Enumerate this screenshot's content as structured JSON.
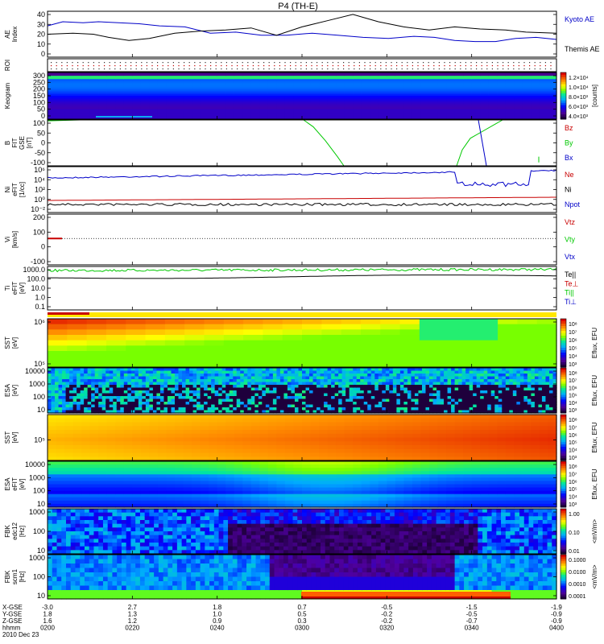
{
  "title": "P4 (TH-E)",
  "colors": {
    "blue": "#0000c8",
    "black": "#000000",
    "red": "#c80000",
    "green": "#00c800",
    "orange": "#ff9a00",
    "yellow": "#ffff00"
  },
  "chart_data": [
    {
      "type": "line",
      "ylabel": "AE Index",
      "ylim": [
        -2,
        42
      ],
      "yticks": [
        "40",
        "30",
        "20",
        "10",
        "0"
      ],
      "legend": [
        {
          "name": "Kyoto AE",
          "color": "#0000c8"
        },
        {
          "name": "Themis AE",
          "color": "#000000"
        }
      ],
      "series": [
        {
          "name": "Kyoto AE",
          "color": "#0000c8",
          "x": [
            0,
            0.03,
            0.07,
            0.1,
            0.14,
            0.18,
            0.22,
            0.27,
            0.32,
            0.37,
            0.42,
            0.47,
            0.52,
            0.57,
            0.62,
            0.67,
            0.72,
            0.76,
            0.8,
            0.84,
            0.88,
            0.92,
            0.96,
            1.0
          ],
          "values": [
            28,
            32,
            31,
            32,
            31,
            30,
            28,
            27,
            21,
            22,
            19,
            19,
            21,
            19,
            17,
            16,
            18,
            17,
            14,
            13,
            13,
            16,
            17,
            15
          ]
        },
        {
          "name": "Themis AE",
          "color": "#000000",
          "x": [
            0,
            0.05,
            0.09,
            0.12,
            0.16,
            0.2,
            0.25,
            0.3,
            0.35,
            0.4,
            0.45,
            0.5,
            0.55,
            0.6,
            0.65,
            0.7,
            0.75,
            0.8,
            0.85,
            0.9,
            0.94,
            1.0
          ],
          "values": [
            20,
            21,
            20,
            17,
            14,
            16,
            21,
            23,
            24,
            26,
            19,
            27,
            33,
            39,
            32,
            27,
            24,
            27,
            25,
            24,
            22,
            21
          ]
        }
      ]
    },
    {
      "type": "table",
      "ylabel": "ROI"
    },
    {
      "type": "heatmap",
      "ylabel": "Keogram",
      "yticks": [
        "300",
        "250",
        "200",
        "150",
        "100",
        "50",
        "0"
      ],
      "colorbar": {
        "labels": [
          "1.2×10⁴",
          "1.0×10⁴",
          "8.0×10³",
          "6.0×10³",
          "4.0×10³"
        ],
        "title": "[counts]"
      }
    },
    {
      "type": "line",
      "ylabel": "B FIT GSE [nT]",
      "ylim": [
        -100,
        100
      ],
      "yticks": [
        "100",
        "50",
        "0",
        "-50",
        "-100"
      ],
      "legend": [
        {
          "name": "Bz",
          "color": "#c80000"
        },
        {
          "name": "By",
          "color": "#00c800"
        },
        {
          "name": "Bx",
          "color": "#0000c8"
        }
      ]
    },
    {
      "type": "line",
      "ylabel": "Ni eFIT [1/cc]",
      "yticks": [
        "10⁶",
        "10⁴",
        "10²",
        "10⁰",
        "10⁻²"
      ],
      "legend": [
        {
          "name": "Ne",
          "color": "#c80000"
        },
        {
          "name": "Ni",
          "color": "#000000"
        },
        {
          "name": "Npot",
          "color": "#0000c8"
        }
      ]
    },
    {
      "type": "line",
      "ylabel": "Vi [km/s]",
      "yticks": [
        "200",
        "100",
        "0",
        "-100"
      ],
      "legend": [
        {
          "name": "Vtz",
          "color": "#c80000"
        },
        {
          "name": "Vty",
          "color": "#00c800"
        },
        {
          "name": "Vtx",
          "color": "#0000c8"
        }
      ]
    },
    {
      "type": "line",
      "ylabel": "Ti eFIT [eV]",
      "yticks": [
        "1000.0",
        "100.0",
        "10.0",
        "1.0",
        "0.1"
      ],
      "legend": [
        {
          "name": "Te||",
          "color": "#000000"
        },
        {
          "name": "Te⊥",
          "color": "#c80000"
        },
        {
          "name": "Ti||",
          "color": "#00c800"
        },
        {
          "name": "Ti⊥",
          "color": "#0000c8"
        }
      ]
    },
    {
      "type": "heatmap",
      "ylabel": "SST [eV]",
      "yticks": [
        "10⁶",
        "10⁵"
      ],
      "colorbar": {
        "title": "Eflux, EFU"
      }
    },
    {
      "type": "heatmap",
      "ylabel": "ESA [eV]",
      "yticks": [
        "10000",
        "1000",
        "100",
        "10"
      ],
      "colorbar": {
        "title": "Eflux, EFU"
      }
    },
    {
      "type": "heatmap",
      "ylabel": "SST [eV]",
      "yticks": [
        "10⁵"
      ],
      "colorbar": {
        "title": "Eflux, EFU"
      }
    },
    {
      "type": "heatmap",
      "ylabel": "ESA eFIT [eV]",
      "yticks": [
        "10000",
        "1000",
        "100",
        "10"
      ],
      "colorbar": {
        "title": "Eflux, EFU"
      }
    },
    {
      "type": "heatmap",
      "ylabel": "FBK edc12 [Hz]",
      "yticks": [
        "1000",
        "100",
        "10"
      ],
      "colorbar": {
        "labels": [
          "1.00",
          "0.10",
          "0.01"
        ],
        "title": "<mV/m>"
      }
    },
    {
      "type": "heatmap",
      "ylabel": "FBK scm1 [Hz]",
      "yticks": [
        "1000",
        "100",
        "10"
      ],
      "colorbar": {
        "labels": [
          "0.1000",
          "0.0100",
          "0.0010",
          "0.0001"
        ],
        "title": "<mV/m>"
      }
    }
  ],
  "cbar_exponents": [
    "10⁸",
    "10⁷",
    "10⁶",
    "10⁵",
    "10⁴",
    "10³"
  ],
  "xaxis": {
    "row_labels": [
      "X-GSE",
      "Y-GSE",
      "Z-GSE",
      "hhmm",
      "2010 Dec 23"
    ],
    "ticks": [
      {
        "x": "-3.0",
        "y": "1.8",
        "z": "1.6",
        "t": "0200"
      },
      {
        "x": "2.7",
        "y": "1.3",
        "z": "1.2",
        "t": "0220"
      },
      {
        "x": "1.8",
        "y": "1.0",
        "z": "0.9",
        "t": "0240"
      },
      {
        "x": "0.7",
        "y": "0.5",
        "z": "0.3",
        "t": "0300"
      },
      {
        "x": "-0.5",
        "y": "-0.2",
        "z": "-0.2",
        "t": "0320"
      },
      {
        "x": "-1.5",
        "y": "-0.5",
        "z": "-0.7",
        "t": "0340"
      },
      {
        "x": "-1.9",
        "y": "-0.9",
        "z": "-0.9",
        "t": "0400"
      }
    ]
  }
}
